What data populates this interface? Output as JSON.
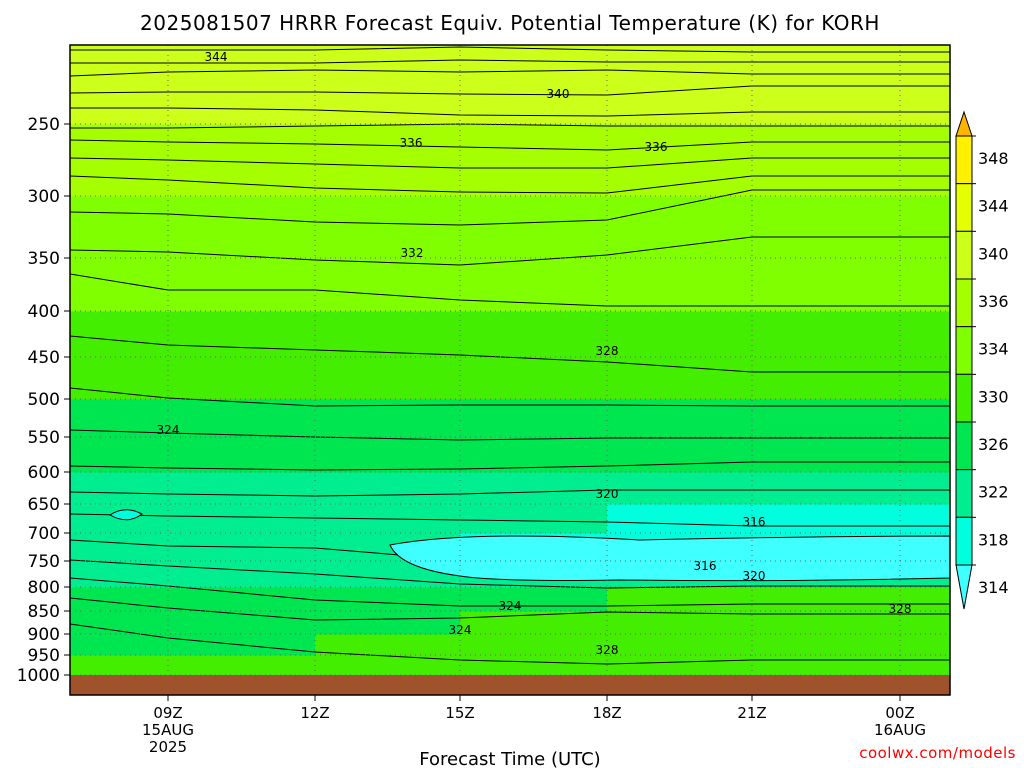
{
  "chart_data": {
    "type": "heatmap",
    "title": "2025081507 HRRR Forecast Equiv. Potential Temperature (K) for KORH",
    "xlabel": "Forecast Time (UTC)",
    "credit": "coolwx.com/models",
    "y_ticks": [
      "250",
      "300",
      "350",
      "400",
      "450",
      "500",
      "550",
      "600",
      "650",
      "700",
      "750",
      "800",
      "850",
      "900",
      "950",
      "1000"
    ],
    "x_ticks": [
      {
        "lines": [
          "09Z",
          "15AUG",
          "2025"
        ]
      },
      {
        "lines": [
          "12Z"
        ]
      },
      {
        "lines": [
          "15Z"
        ]
      },
      {
        "lines": [
          "18Z"
        ]
      },
      {
        "lines": [
          "21Z"
        ]
      },
      {
        "lines": [
          "00Z",
          "16AUG"
        ]
      }
    ],
    "colorbar": {
      "labels": [
        "348",
        "344",
        "340",
        "336",
        "334",
        "330",
        "326",
        "322",
        "318",
        "314"
      ],
      "colors": [
        "#ffb400",
        "#fff000",
        "#e6ff00",
        "#ccff1a",
        "#a6ff00",
        "#80ff00",
        "#44ee00",
        "#00e650",
        "#00ee90",
        "#00ffdd",
        "#40ffff"
      ]
    },
    "contour_labels": [
      "344",
      "340",
      "336",
      "336",
      "332",
      "328",
      "324",
      "320",
      "316",
      "316",
      "320",
      "324",
      "324",
      "328",
      "328"
    ],
    "layers": [
      {
        "p": 1000,
        "theta": [
          326,
          326,
          327,
          329,
          329,
          328
        ]
      },
      {
        "p": 950,
        "theta": [
          325,
          325,
          326,
          328,
          329,
          328
        ]
      },
      {
        "p": 900,
        "theta": [
          325,
          325,
          325,
          327,
          328,
          327
        ]
      },
      {
        "p": 850,
        "theta": [
          324,
          324,
          324,
          325,
          326,
          326
        ]
      },
      {
        "p": 800,
        "theta": [
          321,
          321,
          320,
          319,
          319,
          319
        ]
      },
      {
        "p": 750,
        "theta": [
          320,
          319,
          318,
          315,
          315,
          315
        ]
      },
      {
        "p": 700,
        "theta": [
          319,
          319,
          318,
          318,
          317,
          317
        ]
      },
      {
        "p": 650,
        "theta": [
          320,
          320,
          320,
          320,
          320,
          320
        ]
      },
      {
        "p": 600,
        "theta": [
          322,
          322,
          322,
          322,
          322,
          322
        ]
      },
      {
        "p": 550,
        "theta": [
          324,
          324,
          324,
          324,
          324,
          324
        ]
      },
      {
        "p": 500,
        "theta": [
          326,
          326,
          326,
          326,
          326,
          326
        ]
      },
      {
        "p": 450,
        "theta": [
          328,
          328,
          328,
          328,
          328,
          328
        ]
      },
      {
        "p": 400,
        "theta": [
          330,
          330,
          330,
          330,
          330,
          330
        ]
      },
      {
        "p": 350,
        "theta": [
          332,
          332,
          332,
          332,
          332,
          332
        ]
      },
      {
        "p": 300,
        "theta": [
          334,
          334,
          334,
          334,
          334,
          334
        ]
      },
      {
        "p": 250,
        "theta": [
          336,
          336,
          336,
          336,
          336,
          336
        ]
      },
      {
        "p": 200,
        "theta": [
          342,
          342,
          342,
          342,
          342,
          344
        ]
      }
    ]
  }
}
